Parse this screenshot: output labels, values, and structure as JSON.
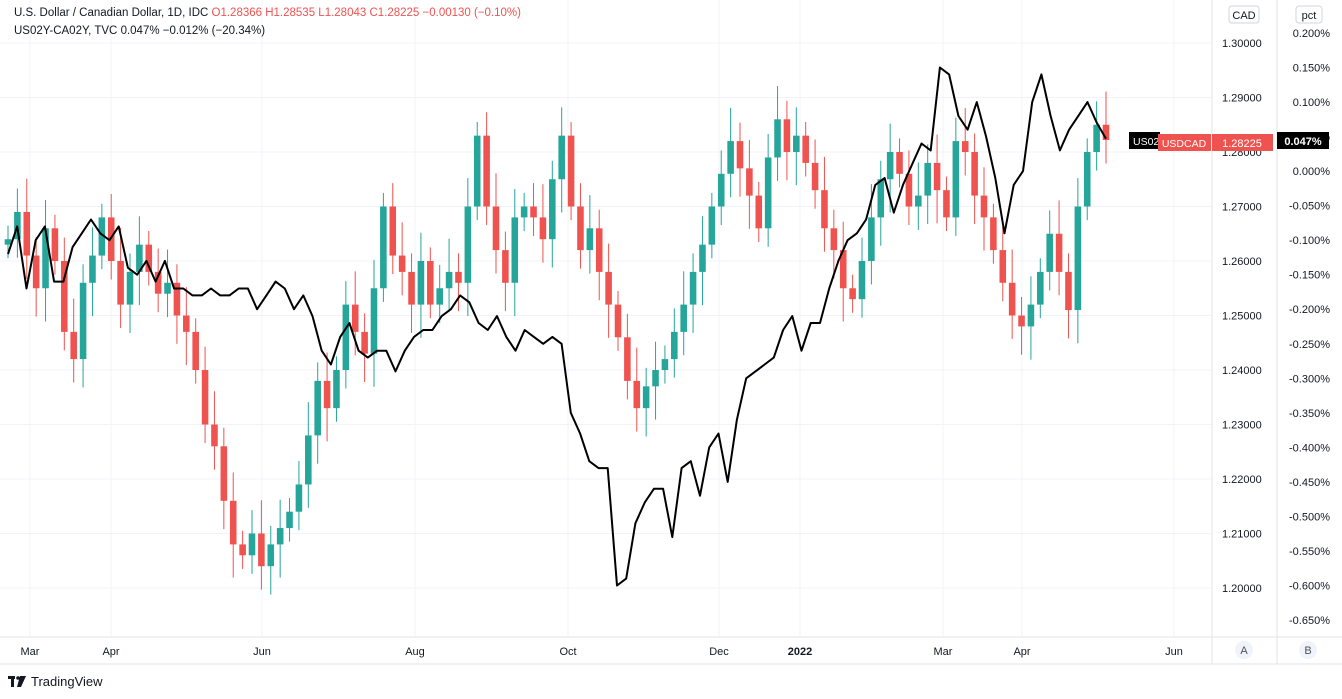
{
  "legend": {
    "main_name": "U.S. Dollar / Canadian Dollar, 1D, IDC",
    "ohlc": "O1.28366  H1.28535  L1.28043  C1.28225  −0.00130 (−0.10%)",
    "overlay_name": "US02Y-CA02Y, TVC",
    "overlay_values": "0.047%  −0.012% (−20.34%)"
  },
  "axis_units": {
    "left": "CAD",
    "right": "pct"
  },
  "scale_buttons": [
    "A",
    "B"
  ],
  "price_tags": {
    "usdcad_label": "USDCAD",
    "usdcad_value": "1.28225",
    "spread_label": "US02",
    "spread_value": "0.047%"
  },
  "footer": {
    "brand": "TradingView"
  },
  "colors": {
    "up": "#26a69a",
    "down": "#ef5350",
    "line": "#000000",
    "grid": "#f0f3fa",
    "axis_text": "#131722"
  },
  "chart_data": {
    "type": "line",
    "title": "U.S. Dollar / Canadian Dollar, 1D, IDC",
    "x_tick_labels": [
      "Mar",
      "Apr",
      "Jun",
      "Aug",
      "Oct",
      "Dec",
      "2022",
      "Mar",
      "Apr",
      "Jun"
    ],
    "y_axis_left": {
      "ticks": [
        "1.30000",
        "1.29000",
        "1.28000",
        "1.27000",
        "1.26000",
        "1.25000",
        "1.24000",
        "1.23000",
        "1.22000",
        "1.21000",
        "1.20000"
      ],
      "range": [
        1.1925,
        1.3075
      ]
    },
    "y_axis_right": {
      "ticks": [
        "0.200%",
        "0.150%",
        "0.100%",
        "0.050%",
        "0.000%",
        "-0.050%",
        "-0.100%",
        "-0.150%",
        "-0.200%",
        "-0.250%",
        "-0.300%",
        "-0.350%",
        "-0.400%",
        "-0.450%",
        "-0.500%",
        "-0.550%",
        "-0.600%",
        "-0.650%"
      ],
      "range": [
        -0.665,
        0.215
      ]
    },
    "series": [
      {
        "name": "USDCAD",
        "style": "candles",
        "approx_closes": [
          1.264,
          1.269,
          1.261,
          1.255,
          1.266,
          1.26,
          1.247,
          1.242,
          1.256,
          1.261,
          1.268,
          1.26,
          1.252,
          1.258,
          1.263,
          1.258,
          1.254,
          1.256,
          1.25,
          1.247,
          1.24,
          1.23,
          1.226,
          1.216,
          1.208,
          1.206,
          1.21,
          1.204,
          1.208,
          1.211,
          1.214,
          1.219,
          1.228,
          1.238,
          1.233,
          1.24,
          1.252,
          1.247,
          1.243,
          1.255,
          1.27,
          1.261,
          1.258,
          1.252,
          1.26,
          1.252,
          1.255,
          1.258,
          1.256,
          1.27,
          1.283,
          1.27,
          1.262,
          1.256,
          1.268,
          1.27,
          1.268,
          1.264,
          1.275,
          1.283,
          1.27,
          1.262,
          1.266,
          1.258,
          1.252,
          1.246,
          1.238,
          1.233,
          1.237,
          1.24,
          1.242,
          1.247,
          1.252,
          1.258,
          1.263,
          1.27,
          1.276,
          1.282,
          1.277,
          1.272,
          1.266,
          1.279,
          1.286,
          1.28,
          1.283,
          1.278,
          1.273,
          1.266,
          1.262,
          1.255,
          1.253,
          1.26,
          1.268,
          1.275,
          1.28,
          1.276,
          1.27,
          1.272,
          1.278,
          1.273,
          1.268,
          1.282,
          1.28,
          1.272,
          1.268,
          1.262,
          1.256,
          1.25,
          1.248,
          1.252,
          1.258,
          1.265,
          1.258,
          1.251,
          1.27,
          1.28,
          1.285,
          1.2822
        ]
      },
      {
        "name": "US02Y-CA02Y",
        "style": "line",
        "unit": "%",
        "values": [
          -0.12,
          -0.08,
          -0.17,
          -0.1,
          -0.08,
          -0.16,
          -0.16,
          -0.11,
          -0.09,
          -0.07,
          -0.09,
          -0.1,
          -0.08,
          -0.14,
          -0.15,
          -0.13,
          -0.16,
          -0.13,
          -0.17,
          -0.17,
          -0.18,
          -0.18,
          -0.17,
          -0.18,
          -0.18,
          -0.17,
          -0.17,
          -0.2,
          -0.18,
          -0.16,
          -0.17,
          -0.2,
          -0.18,
          -0.21,
          -0.26,
          -0.28,
          -0.24,
          -0.22,
          -0.26,
          -0.27,
          -0.26,
          -0.26,
          -0.29,
          -0.26,
          -0.24,
          -0.23,
          -0.23,
          -0.21,
          -0.2,
          -0.18,
          -0.19,
          -0.22,
          -0.23,
          -0.21,
          -0.24,
          -0.26,
          -0.23,
          -0.24,
          -0.25,
          -0.24,
          -0.25,
          -0.35,
          -0.38,
          -0.42,
          -0.43,
          -0.43,
          -0.6,
          -0.59,
          -0.51,
          -0.48,
          -0.46,
          -0.46,
          -0.53,
          -0.43,
          -0.42,
          -0.47,
          -0.4,
          -0.38,
          -0.45,
          -0.36,
          -0.3,
          -0.29,
          -0.28,
          -0.27,
          -0.23,
          -0.21,
          -0.26,
          -0.22,
          -0.22,
          -0.17,
          -0.13,
          -0.1,
          -0.09,
          -0.07,
          -0.02,
          -0.01,
          -0.06,
          -0.02,
          0.01,
          0.04,
          0.03,
          0.15,
          0.14,
          0.08,
          0.06,
          0.1,
          0.05,
          -0.01,
          -0.09,
          -0.02,
          0.0,
          0.1,
          0.14,
          0.08,
          0.03,
          0.06,
          0.08,
          0.1,
          0.07,
          0.047
        ]
      }
    ],
    "last_values": {
      "USDCAD": 1.28225,
      "US02Y-CA02Y": 0.047
    },
    "grid": true,
    "legend_position": "top-left"
  }
}
